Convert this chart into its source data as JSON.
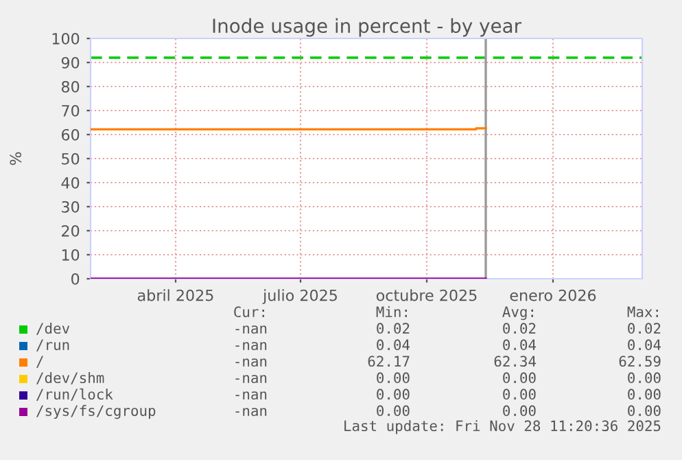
{
  "chart_data": {
    "type": "line",
    "title": "Inode usage in percent - by year",
    "ylabel": "%",
    "xlim": [
      "2025-01-29",
      "2026-03-07"
    ],
    "xticks": [
      {
        "value": "2025-04-01",
        "label": "abril 2025"
      },
      {
        "value": "2025-07-01",
        "label": "julio 2025"
      },
      {
        "value": "2025-10-01",
        "label": "octubre 2025"
      },
      {
        "value": "2026-01-01",
        "label": "enero 2026"
      }
    ],
    "ylim": [
      0,
      100
    ],
    "yticks": [
      0,
      10,
      20,
      30,
      40,
      50,
      60,
      70,
      80,
      90,
      100
    ],
    "grid": true,
    "legend": "bottom",
    "series": [
      {
        "name": "/dev",
        "color": "#00cc00"
      },
      {
        "name": "/run",
        "color": "#0066b3"
      },
      {
        "name": "/",
        "color": "#ff8000",
        "x": [
          "2025-01-29",
          "2025-11-06",
          "2025-11-06",
          "2025-11-13"
        ],
        "values": [
          62.2,
          62.2,
          62.6,
          62.6
        ]
      },
      {
        "name": "/dev/shm",
        "color": "#ffcc00"
      },
      {
        "name": "/run/lock",
        "color": "#330099"
      },
      {
        "name": "/sys/fs/cgroup",
        "color": "#990099",
        "x": [
          "2025-01-29",
          "2025-11-13"
        ],
        "values": [
          0,
          0
        ]
      }
    ],
    "ref_lines": [
      {
        "axis": "y",
        "value": 92,
        "color": "#00cc00",
        "line_style": "dashed"
      },
      {
        "axis": "x",
        "value": "2025-11-13",
        "color": "#999999",
        "line_style": "solid"
      }
    ],
    "annotations": [
      "Cur:",
      "Min:",
      "Avg:",
      "Max:",
      "-nan",
      "0.02",
      "0.02",
      "0.02",
      "-nan",
      "0.04",
      "0.04",
      "0.04",
      "-nan",
      "62.17",
      "62.34",
      "62.59",
      "-nan",
      "0.00",
      "0.00",
      "0.00",
      "-nan",
      "0.00",
      "0.00",
      "0.00",
      "-nan",
      "0.00",
      "0.00",
      "0.00",
      "Last update: Fri Nov 28 11:20:36 2025"
    ]
  }
}
